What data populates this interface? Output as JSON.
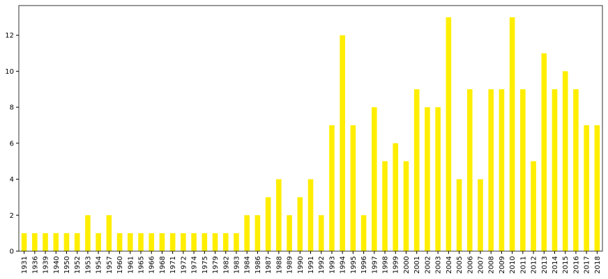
{
  "chart_data": {
    "type": "bar",
    "categories": [
      "1931",
      "1936",
      "1939",
      "1940",
      "1950",
      "1952",
      "1953",
      "1954",
      "1957",
      "1960",
      "1961",
      "1965",
      "1966",
      "1968",
      "1971",
      "1972",
      "1974",
      "1975",
      "1979",
      "1982",
      "1983",
      "1984",
      "1986",
      "1987",
      "1988",
      "1989",
      "1990",
      "1991",
      "1992",
      "1993",
      "1994",
      "1995",
      "1996",
      "1997",
      "1998",
      "1999",
      "2000",
      "2001",
      "2002",
      "2003",
      "2004",
      "2005",
      "2006",
      "2007",
      "2008",
      "2009",
      "2010",
      "2011",
      "2012",
      "2013",
      "2014",
      "2015",
      "2016",
      "2017",
      "2018"
    ],
    "values": [
      1,
      1,
      1,
      1,
      1,
      1,
      2,
      1,
      2,
      1,
      1,
      1,
      1,
      1,
      1,
      1,
      1,
      1,
      1,
      1,
      1,
      2,
      2,
      3,
      4,
      2,
      3,
      4,
      2,
      7,
      12,
      7,
      2,
      8,
      5,
      6,
      5,
      9,
      8,
      8,
      13,
      4,
      9,
      4,
      9,
      9,
      13,
      9,
      5,
      11,
      9,
      10,
      9,
      7,
      7
    ],
    "color": "#ffee00",
    "ylim": [
      0,
      13.65
    ],
    "yticks": [
      0,
      2,
      4,
      6,
      8,
      10,
      12
    ]
  }
}
